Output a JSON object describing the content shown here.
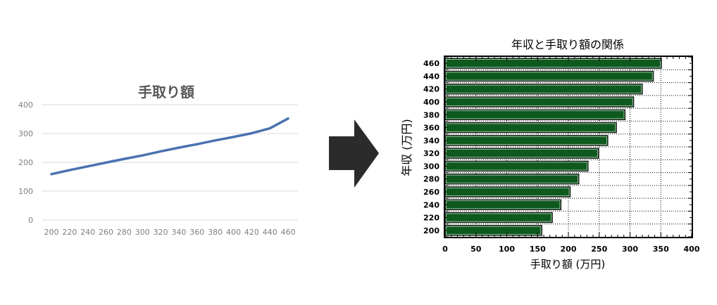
{
  "arrow_color": "#2b2b2b",
  "chart_data": [
    {
      "type": "line",
      "title": "手取り額",
      "x": [
        200,
        220,
        240,
        260,
        280,
        300,
        320,
        340,
        360,
        380,
        400,
        420,
        440,
        460
      ],
      "series": [
        {
          "values": [
            159,
            173,
            186,
            199,
            212,
            224,
            238,
            251,
            263,
            276,
            288,
            301,
            318,
            352
          ]
        }
      ],
      "xlim": [
        200,
        460
      ],
      "ylim": [
        0,
        400
      ],
      "y_ticks": [
        0,
        100,
        200,
        300,
        400
      ],
      "grid": true,
      "line_color": "#4a72b0",
      "title_color": "#595959",
      "tick_color": "#7f7f7f"
    },
    {
      "type": "bar",
      "orientation": "horizontal",
      "title": "年収と手取り額の関係",
      "xlabel": "手取り額 (万円)",
      "ylabel": "年収 (万円)",
      "categories": [
        "200",
        "220",
        "240",
        "260",
        "280",
        "300",
        "320",
        "340",
        "360",
        "380",
        "400",
        "420",
        "440",
        "460"
      ],
      "values": [
        157,
        174,
        188,
        203,
        217,
        232,
        249,
        264,
        278,
        292,
        306,
        320,
        338,
        351
      ],
      "xlim": [
        0,
        400
      ],
      "x_ticks": [
        0,
        50,
        100,
        150,
        200,
        250,
        300,
        350,
        400
      ],
      "grid": true,
      "bar_color": "#0e5a1e"
    }
  ]
}
